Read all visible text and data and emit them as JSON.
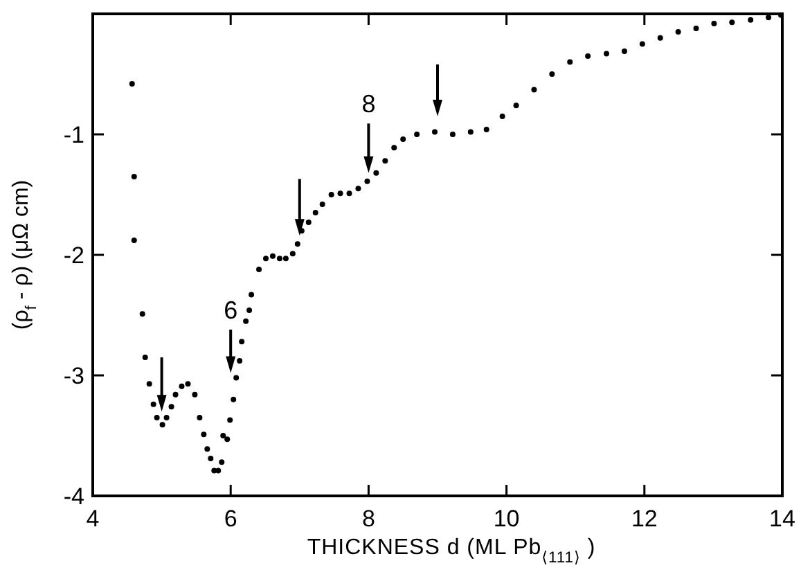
{
  "chart_data": {
    "type": "scatter",
    "xlabel": "THICKNESS  d   (ML Pb$_{⟨111⟩}$)",
    "ylabel": "(ρ$_{f}$ - ρ) (μΩ cm)",
    "xlim": [
      4,
      14
    ],
    "ylim": [
      -4,
      0
    ],
    "xticks": [
      4,
      6,
      8,
      10,
      12,
      14
    ],
    "yticks": [
      -4,
      -3,
      -2,
      -1
    ],
    "marker": "circle",
    "grid": false,
    "annotations": [
      "6",
      "8"
    ],
    "series": [
      {
        "color": "#000000",
        "x": [
          4.57,
          4.6,
          4.6,
          4.72,
          4.76,
          4.82,
          4.88,
          4.93,
          5.01,
          5.07,
          5.14,
          5.2,
          5.29,
          5.38,
          5.48,
          5.55,
          5.61,
          5.66,
          5.71,
          5.76,
          5.82,
          5.87,
          5.89,
          5.95,
          5.99,
          6.04,
          6.08,
          6.13,
          6.16,
          6.22,
          6.27,
          6.3,
          6.41,
          6.51,
          6.61,
          6.71,
          6.8,
          6.9,
          6.97,
          7.03,
          7.13,
          7.23,
          7.33,
          7.46,
          7.59,
          7.72,
          7.85,
          7.98,
          8.11,
          8.24,
          8.37,
          8.5,
          8.7,
          8.96,
          9.22,
          9.48,
          9.71,
          9.94,
          10.14,
          10.4,
          10.66,
          10.92,
          11.18,
          11.45,
          11.71,
          11.97,
          12.23,
          12.49,
          12.75,
          13.01,
          13.27,
          13.54,
          13.8,
          13.98
        ],
        "values": [
          -0.58,
          -1.35,
          -1.88,
          -2.49,
          -2.85,
          -3.07,
          -3.24,
          -3.35,
          -3.41,
          -3.35,
          -3.26,
          -3.16,
          -3.09,
          -3.07,
          -3.16,
          -3.35,
          -3.49,
          -3.61,
          -3.69,
          -3.79,
          -3.79,
          -3.72,
          -3.5,
          -3.53,
          -3.37,
          -3.2,
          -3.02,
          -2.88,
          -2.72,
          -2.55,
          -2.46,
          -2.33,
          -2.12,
          -2.03,
          -2.01,
          -2.03,
          -2.03,
          -1.99,
          -1.91,
          -1.8,
          -1.73,
          -1.65,
          -1.58,
          -1.5,
          -1.49,
          -1.49,
          -1.45,
          -1.39,
          -1.32,
          -1.22,
          -1.11,
          -1.04,
          -1.0,
          -0.98,
          -1.0,
          -0.98,
          -0.96,
          -0.85,
          -0.76,
          -0.63,
          -0.5,
          -0.4,
          -0.35,
          -0.33,
          -0.31,
          -0.25,
          -0.2,
          -0.15,
          -0.12,
          -0.08,
          -0.07,
          -0.05,
          -0.03,
          -0.01
        ]
      }
    ]
  }
}
